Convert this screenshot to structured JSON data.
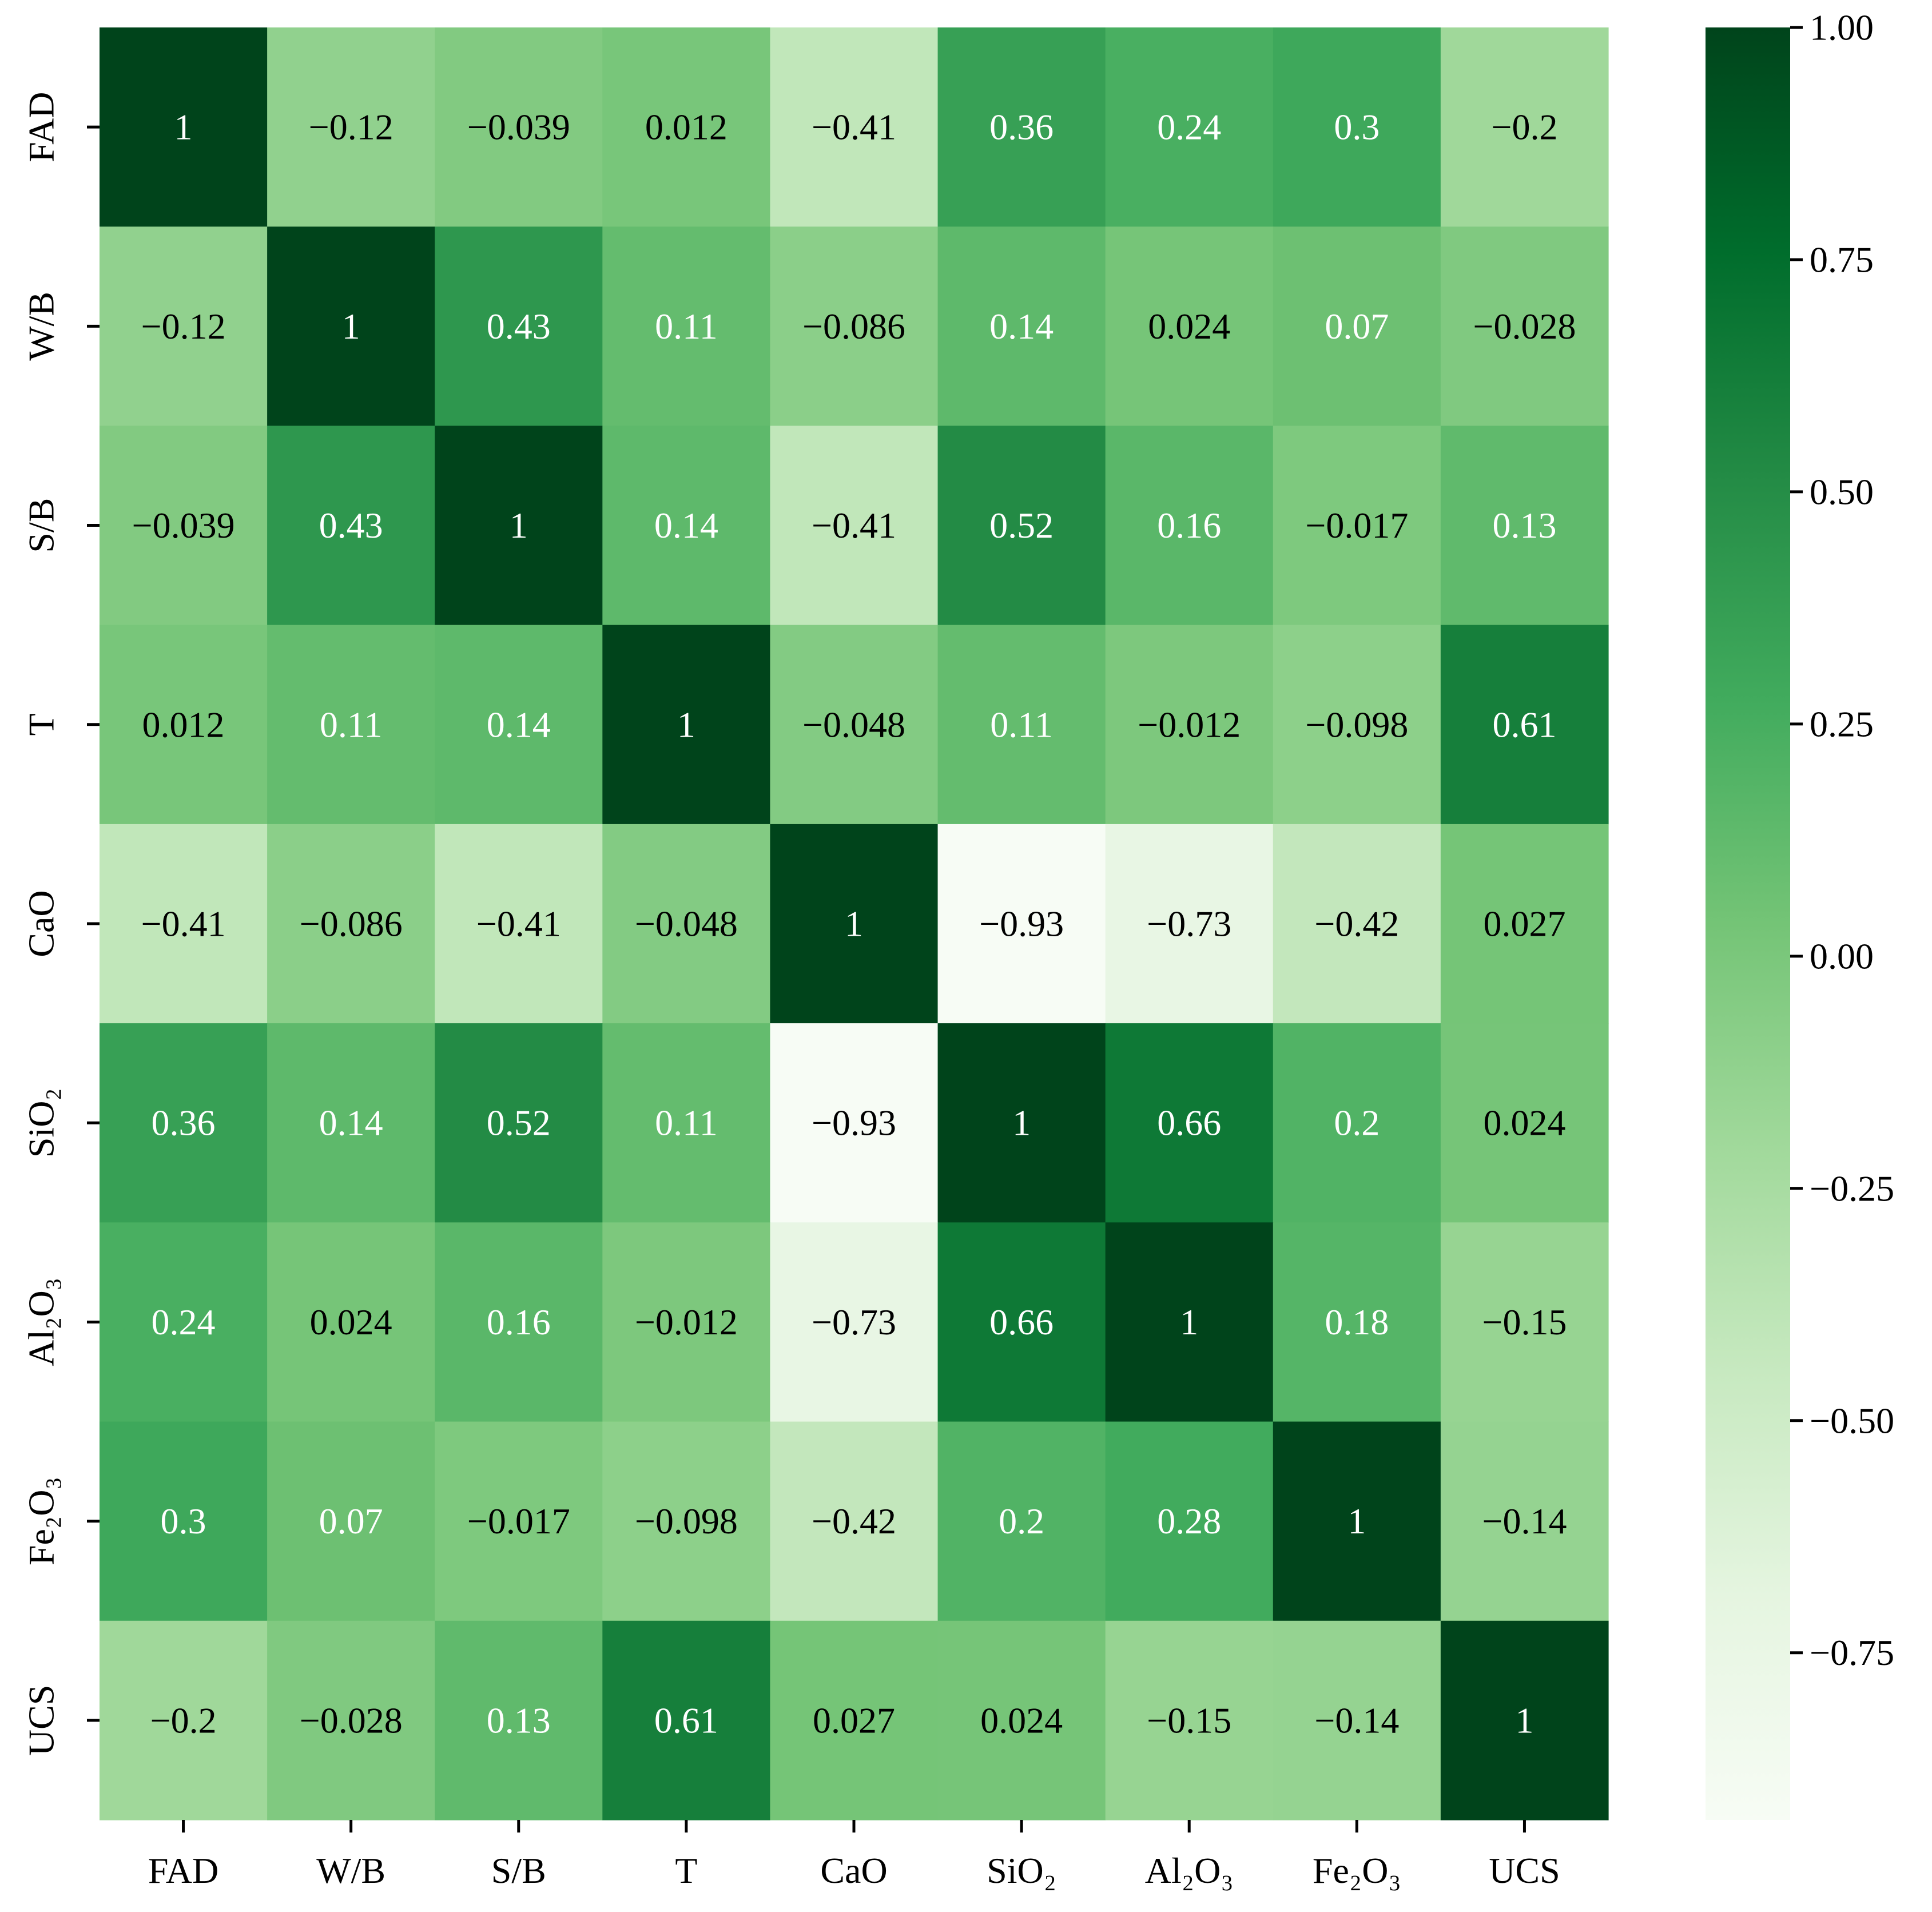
{
  "chart_data": {
    "type": "heatmap",
    "x_labels": [
      "FAD",
      "W/B",
      "S/B",
      "T",
      "CaO",
      "SiO₂",
      "Al₂O₃",
      "Fe₂O₃",
      "UCS"
    ],
    "y_labels": [
      "FAD",
      "W/B",
      "S/B",
      "T",
      "CaO",
      "SiO₂",
      "Al₂O₃",
      "Fe₂O₃",
      "UCS"
    ],
    "values": [
      [
        1,
        -0.12,
        -0.039,
        0.012,
        -0.41,
        0.36,
        0.24,
        0.3,
        -0.2
      ],
      [
        -0.12,
        1,
        0.43,
        0.11,
        -0.086,
        0.14,
        0.024,
        0.07,
        -0.028
      ],
      [
        -0.039,
        0.43,
        1,
        0.14,
        -0.41,
        0.52,
        0.16,
        -0.017,
        0.13
      ],
      [
        0.012,
        0.11,
        0.14,
        1,
        -0.048,
        0.11,
        -0.012,
        -0.098,
        0.61
      ],
      [
        -0.41,
        -0.086,
        -0.41,
        -0.048,
        1,
        -0.93,
        -0.73,
        -0.42,
        0.027
      ],
      [
        0.36,
        0.14,
        0.52,
        0.11,
        -0.93,
        1,
        0.66,
        0.2,
        0.024
      ],
      [
        0.24,
        0.024,
        0.16,
        -0.012,
        -0.73,
        0.66,
        1,
        0.18,
        -0.15
      ],
      [
        0.3,
        0.07,
        -0.017,
        -0.098,
        -0.42,
        0.2,
        0.28,
        1,
        -0.14
      ],
      [
        -0.2,
        -0.028,
        0.13,
        0.61,
        0.027,
        0.024,
        -0.15,
        -0.14,
        1
      ]
    ],
    "value_labels": [
      [
        "1",
        "−0.12",
        "−0.039",
        "0.012",
        "−0.41",
        "0.36",
        "0.24",
        "0.3",
        "−0.2"
      ],
      [
        "−0.12",
        "1",
        "0.43",
        "0.11",
        "−0.086",
        "0.14",
        "0.024",
        "0.07",
        "−0.028"
      ],
      [
        "−0.039",
        "0.43",
        "1",
        "0.14",
        "−0.41",
        "0.52",
        "0.16",
        "−0.017",
        "0.13"
      ],
      [
        "0.012",
        "0.11",
        "0.14",
        "1",
        "−0.048",
        "0.11",
        "−0.012",
        "−0.098",
        "0.61"
      ],
      [
        "−0.41",
        "−0.086",
        "−0.41",
        "−0.048",
        "1",
        "−0.93",
        "−0.73",
        "−0.42",
        "0.027"
      ],
      [
        "0.36",
        "0.14",
        "0.52",
        "0.11",
        "−0.93",
        "1",
        "0.66",
        "0.2",
        "0.024"
      ],
      [
        "0.24",
        "0.024",
        "0.16",
        "−0.012",
        "−0.73",
        "0.66",
        "1",
        "0.18",
        "−0.15"
      ],
      [
        "0.3",
        "0.07",
        "−0.017",
        "−0.098",
        "−0.42",
        "0.2",
        "0.28",
        "1",
        "−0.14"
      ],
      [
        "−0.2",
        "−0.028",
        "0.13",
        "0.61",
        "0.027",
        "0.024",
        "−0.15",
        "−0.14",
        "1"
      ]
    ],
    "colormap": "Greens",
    "colormap_stops": [
      "#f7fcf5",
      "#e5f5e0",
      "#c7e9c0",
      "#a1d99b",
      "#74c476",
      "#41ab5d",
      "#238b45",
      "#006d2c",
      "#00441b"
    ],
    "vmin": -0.93,
    "vmax": 1,
    "colorbar_ticks": [
      1.0,
      0.75,
      0.5,
      0.25,
      0.0,
      -0.25,
      -0.5,
      -0.75
    ],
    "colorbar_tick_labels": [
      "1.00",
      "0.75",
      "0.50",
      "0.25",
      "0.00",
      "−0.25",
      "−0.50",
      "−0.75"
    ],
    "title": "",
    "xlabel": "",
    "ylabel": ""
  }
}
